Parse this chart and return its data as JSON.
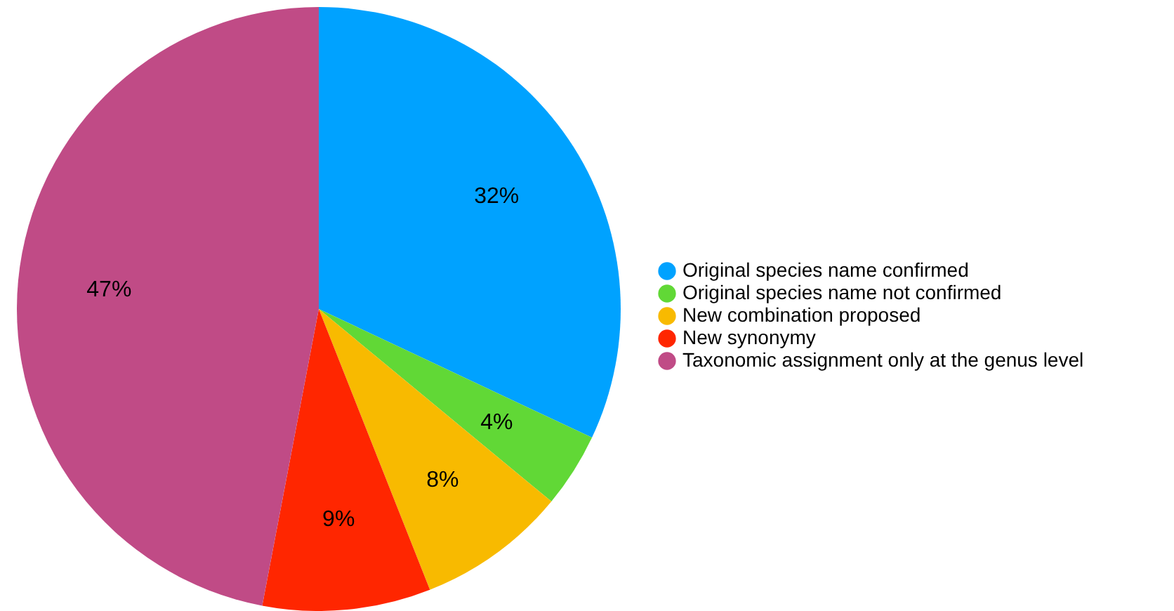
{
  "chart_data": {
    "type": "pie",
    "categories": [
      "Original species name confirmed",
      "Original species name not confirmed",
      "New combination proposed",
      "New synonymy",
      "Taxonomic assignment only at the genus level"
    ],
    "values": [
      32,
      4,
      8,
      9,
      47
    ],
    "value_labels": [
      "32%",
      "4%",
      "8%",
      "9%",
      "47%"
    ],
    "colors": [
      "#00a2ff",
      "#61d836",
      "#f8ba00",
      "#ff2600",
      "#c04b86"
    ],
    "legend": "right"
  }
}
